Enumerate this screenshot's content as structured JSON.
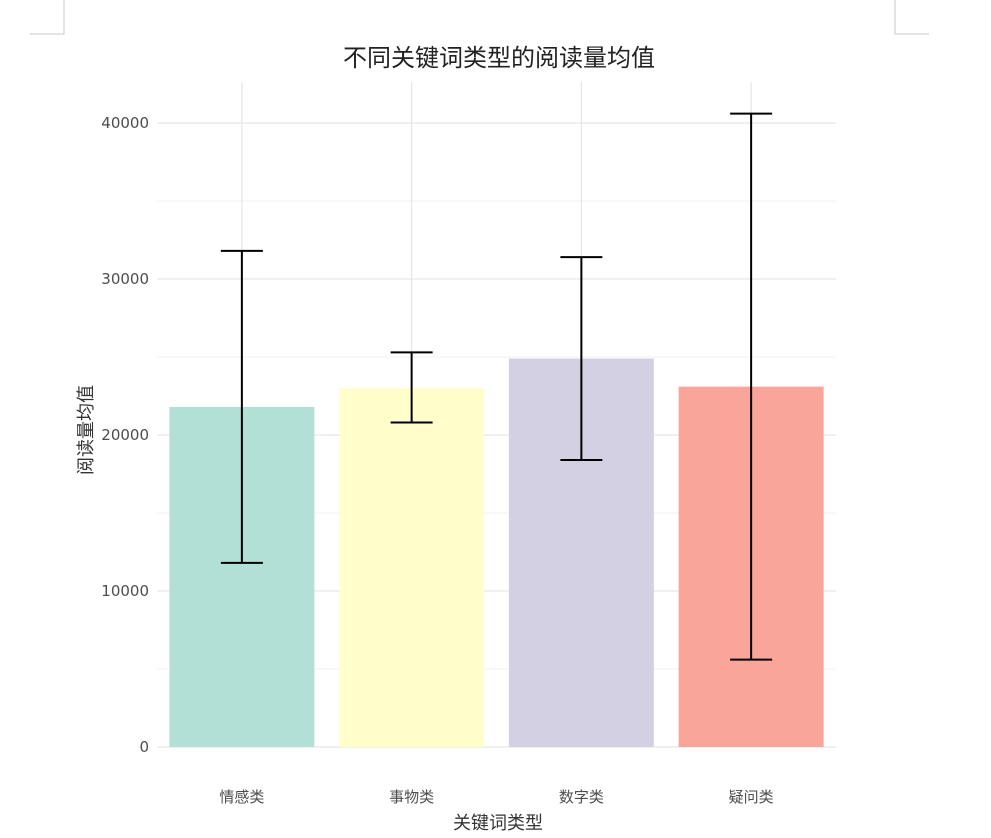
{
  "chart_data": {
    "type": "bar",
    "title": "不同关键词类型的阅读量均值",
    "xlabel": "关键词类型",
    "ylabel": "阅读量均值",
    "categories": [
      "情感类",
      "事物类",
      "数字类",
      "疑问类"
    ],
    "values": [
      21800,
      23000,
      24900,
      23100
    ],
    "error_low": [
      11800,
      20800,
      18400,
      5600
    ],
    "error_high": [
      31800,
      25300,
      31400,
      40600
    ],
    "colors": [
      "#b2e0d6",
      "#ffffcc",
      "#d3d0e4",
      "#f9a59a"
    ],
    "ylim": [
      0,
      42500
    ],
    "yticks": [
      0,
      10000,
      20000,
      30000,
      40000
    ],
    "grid": true,
    "legend": "none"
  }
}
